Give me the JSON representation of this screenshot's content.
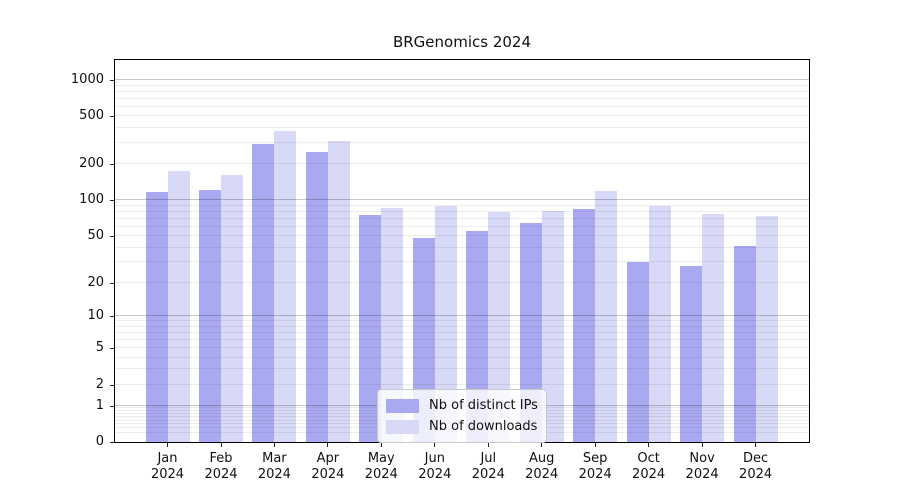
{
  "figure": {
    "title": "BRGenomics 2024"
  },
  "chart_data": {
    "type": "bar",
    "title": "BRGenomics 2024",
    "x_categories": [
      "Jan 2024",
      "Feb 2024",
      "Mar 2024",
      "Apr 2024",
      "May 2024",
      "Jun 2024",
      "Jul 2024",
      "Aug 2024",
      "Sep 2024",
      "Oct 2024",
      "Nov 2024",
      "Dec 2024"
    ],
    "series": [
      {
        "name": "Nb of distinct IPs",
        "color": "#a9a9f2",
        "values": [
          117,
          123,
          297,
          251,
          76,
          48,
          55,
          65,
          85,
          30,
          28,
          41
        ]
      },
      {
        "name": "Nb of downloads",
        "color": "#d8d8f7",
        "values": [
          175,
          164,
          380,
          315,
          86,
          90,
          80,
          81,
          120,
          90,
          77,
          74
        ]
      }
    ],
    "yscale": "log1p",
    "yticks": [
      0,
      1,
      2,
      5,
      10,
      20,
      50,
      100,
      200,
      500,
      1000
    ],
    "ylim": [
      0,
      1500
    ],
    "grid": "both",
    "legend_position": "lower center"
  }
}
